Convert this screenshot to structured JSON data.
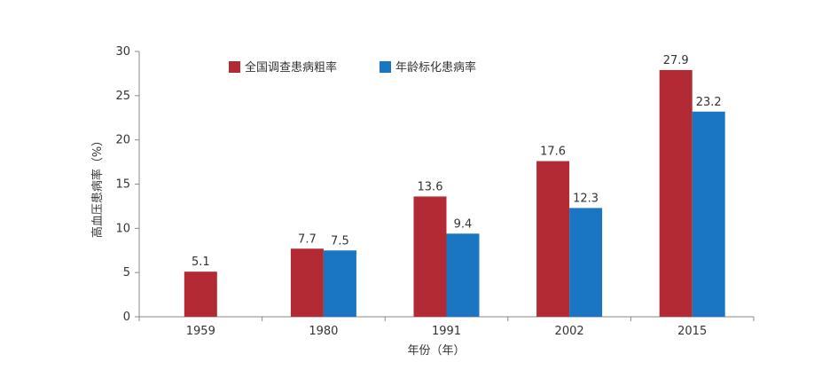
{
  "chart_data": {
    "type": "bar",
    "categories": [
      "1959",
      "1980",
      "1991",
      "2002",
      "2015"
    ],
    "series": [
      {
        "name": "全国调查患病粗率",
        "color": "#b22a33",
        "values": [
          5.1,
          7.7,
          13.6,
          17.6,
          27.9
        ]
      },
      {
        "name": "年龄标化患病率",
        "color": "#1a76c2",
        "values": [
          null,
          7.5,
          9.4,
          12.3,
          23.2
        ]
      }
    ],
    "data_labels": [
      [
        "5.1",
        "7.7",
        "13.6",
        "17.6",
        "27.9"
      ],
      [
        "",
        "7.5",
        "9.4",
        "12.3",
        "23.2"
      ]
    ],
    "title": "",
    "xlabel": "年份（年）",
    "ylabel": "高血压患病率（%）",
    "ylim": [
      0,
      30
    ],
    "yticks": [
      0,
      5,
      10,
      15,
      20,
      25,
      30
    ],
    "grid": false,
    "legend": "top-left"
  }
}
